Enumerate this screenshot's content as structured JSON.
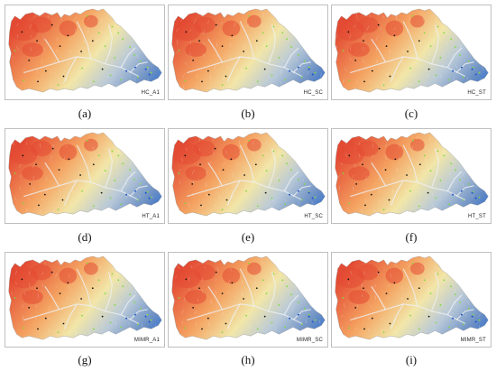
{
  "colors": {
    "high": "#e34a33",
    "mid_high": "#f4a261",
    "mid": "#f2e6a8",
    "mid_low": "#b9c9d8",
    "low": "#6b8fc4",
    "lowest": "#2f6fd1",
    "point_black": "#111111",
    "point_green": "#7ddc3a",
    "point_blue": "#1c53c9",
    "frame": "#bfbfbf"
  },
  "panels": [
    {
      "map_id": "HC_A1",
      "caption": "(a)"
    },
    {
      "map_id": "HC_SC",
      "caption": "(b)"
    },
    {
      "map_id": "HC_ST",
      "caption": "(c)"
    },
    {
      "map_id": "HT_A1",
      "caption": "(d)"
    },
    {
      "map_id": "HT_SC",
      "caption": "(e)"
    },
    {
      "map_id": "HT_ST",
      "caption": "(f)"
    },
    {
      "map_id": "MIMR_A1",
      "caption": "(g)"
    },
    {
      "map_id": "MIMR_SC",
      "caption": "(h)"
    },
    {
      "map_id": "MIMR_ST",
      "caption": "(i)"
    }
  ]
}
